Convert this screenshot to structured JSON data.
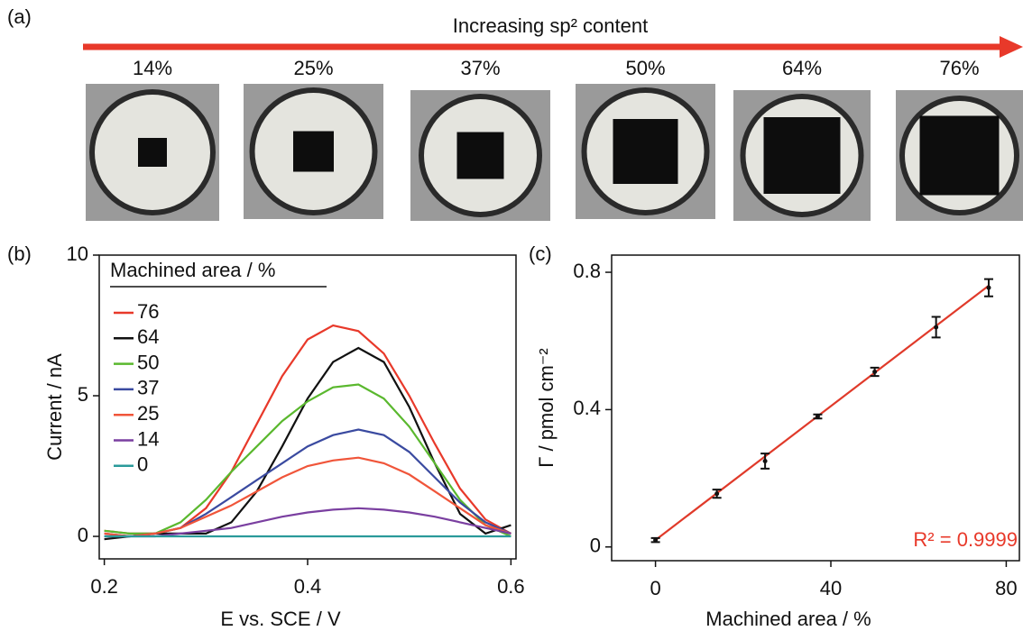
{
  "panel_a": {
    "label": "(a)",
    "arrow_text": "Increasing sp² content",
    "arrow_color": "#e8392a",
    "image_labels": [
      "14%",
      "25%",
      "37%",
      "50%",
      "64%",
      "76%"
    ]
  },
  "chart_data": [
    {
      "type": "line",
      "panel_label": "(b)",
      "x_label": "E vs. SCE / V",
      "y_label": "Current  / nA",
      "legend_title": "Machined area / %",
      "x": [
        0.2,
        0.225,
        0.25,
        0.275,
        0.3,
        0.325,
        0.35,
        0.375,
        0.4,
        0.425,
        0.45,
        0.475,
        0.5,
        0.525,
        0.55,
        0.575,
        0.6
      ],
      "series": [
        {
          "name": "76",
          "color": "#e8392a",
          "values": [
            0.2,
            0.1,
            0.1,
            0.3,
            1.0,
            2.3,
            4.0,
            5.7,
            7.0,
            7.5,
            7.3,
            6.5,
            5.0,
            3.3,
            1.7,
            0.6,
            0.1
          ]
        },
        {
          "name": "64",
          "color": "#111111",
          "values": [
            -0.1,
            0,
            0.1,
            0.1,
            0.1,
            0.5,
            1.6,
            3.2,
            4.9,
            6.2,
            6.7,
            6.2,
            4.6,
            2.6,
            0.8,
            0.1,
            0.4
          ]
        },
        {
          "name": "50",
          "color": "#5ab82e",
          "values": [
            0.2,
            0.1,
            0.1,
            0.5,
            1.3,
            2.3,
            3.2,
            4.1,
            4.8,
            5.3,
            5.4,
            4.9,
            3.9,
            2.6,
            1.3,
            0.4,
            0
          ]
        },
        {
          "name": "37",
          "color": "#3a4aa0",
          "values": [
            0.1,
            0,
            0.1,
            0.3,
            0.8,
            1.4,
            2.0,
            2.6,
            3.2,
            3.6,
            3.8,
            3.6,
            3.0,
            2.1,
            1.2,
            0.5,
            0.1
          ]
        },
        {
          "name": "25",
          "color": "#f0553a",
          "values": [
            0.1,
            0,
            0.1,
            0.3,
            0.7,
            1.1,
            1.6,
            2.1,
            2.5,
            2.7,
            2.8,
            2.6,
            2.2,
            1.6,
            1.0,
            0.4,
            0.1
          ]
        },
        {
          "name": "14",
          "color": "#7a3fa0",
          "values": [
            0,
            0,
            0,
            0.1,
            0.2,
            0.3,
            0.5,
            0.7,
            0.85,
            0.95,
            1.0,
            0.95,
            0.85,
            0.7,
            0.5,
            0.3,
            0.1
          ]
        },
        {
          "name": "0",
          "color": "#2a9a9a",
          "values": [
            0,
            0,
            0,
            0,
            0,
            0,
            0,
            0,
            0,
            0,
            0,
            0,
            0,
            0,
            0,
            0,
            0
          ]
        }
      ],
      "xlim": [
        0.195,
        0.605
      ],
      "xticks": [
        0.2,
        0.4,
        0.6
      ],
      "ylim": [
        -0.8,
        10
      ],
      "yticks": [
        0,
        5,
        10
      ]
    },
    {
      "type": "scatter",
      "panel_label": "(c)",
      "x_label": "Machined area / %",
      "y_label": "Γ / pmol cm⁻²",
      "x": [
        0,
        14,
        25,
        37,
        50,
        64,
        76
      ],
      "values": [
        0.02,
        0.155,
        0.25,
        0.38,
        0.51,
        0.64,
        0.755
      ],
      "errors": [
        0.006,
        0.012,
        0.022,
        0.006,
        0.012,
        0.03,
        0.025
      ],
      "color": "#111111",
      "fit": {
        "x": [
          0,
          76
        ],
        "values": [
          0.02,
          0.761
        ],
        "color": "#e03a2a"
      },
      "annotation": "R² = 0.9999",
      "annotation_color": "#e8392a",
      "xlim": [
        -10,
        83
      ],
      "xticks": [
        0,
        40,
        80
      ],
      "ylim": [
        -0.04,
        0.85
      ],
      "yticks": [
        0,
        0.4,
        0.8
      ]
    }
  ]
}
